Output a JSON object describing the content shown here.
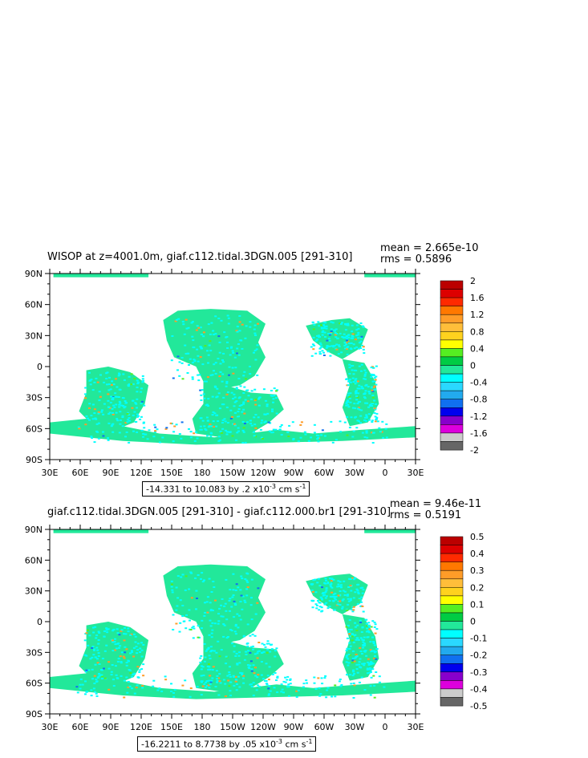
{
  "panels": [
    {
      "title": "WISOP at z=4001.0m, giaf.c112.tidal.3DGN.005 [291-310]",
      "mean": "mean = 2.665e-10",
      "rms": "rms = 0.5896",
      "range_text": "-14.331 to 10.083 by .2 x10",
      "range_exp": "-3",
      "range_unit": " cm s",
      "range_unit_exp": "-1",
      "colorbar_labels": [
        "2",
        "1.6",
        "1.2",
        "0.8",
        "0.4",
        "0",
        "-0.4",
        "-0.8",
        "-1.2",
        "-1.6",
        "-2"
      ]
    },
    {
      "title": "giaf.c112.tidal.3DGN.005 [291-310] - giaf.c112.000.br1 [291-310]",
      "mean": "mean = 9.46e-11",
      "rms": "rms = 0.5191",
      "range_text": "-16.2211 to 8.7738 by .05 x10",
      "range_exp": "-3",
      "range_unit": " cm s",
      "range_unit_exp": "-1",
      "colorbar_labels": [
        "0.5",
        "0.4",
        "0.3",
        "0.2",
        "0.1",
        "0",
        "-0.1",
        "-0.2",
        "-0.3",
        "-0.4",
        "-0.5"
      ]
    }
  ],
  "axes": {
    "lat_labels": [
      "90N",
      "60N",
      "30N",
      "0",
      "30S",
      "60S",
      "90S"
    ],
    "lon_labels": [
      "30E",
      "60E",
      "90E",
      "120E",
      "150E",
      "180",
      "150W",
      "120W",
      "90W",
      "60W",
      "30W",
      "0",
      "30E"
    ]
  },
  "colors": {
    "colorbar": [
      "#bb0000",
      "#dd0000",
      "#ff2a00",
      "#ff7800",
      "#ff9c28",
      "#ffbe3a",
      "#ffd21e",
      "#ffff00",
      "#55ee22",
      "#00cc44",
      "#22e89a",
      "#00ffff",
      "#2ad8ff",
      "#22aaee",
      "#1070f0",
      "#0000ee",
      "#8800cc",
      "#dd00dd",
      "#cccccc",
      "#666666"
    ],
    "ocean": "#22e89a",
    "ocean_speckle": "#00ffff"
  }
}
